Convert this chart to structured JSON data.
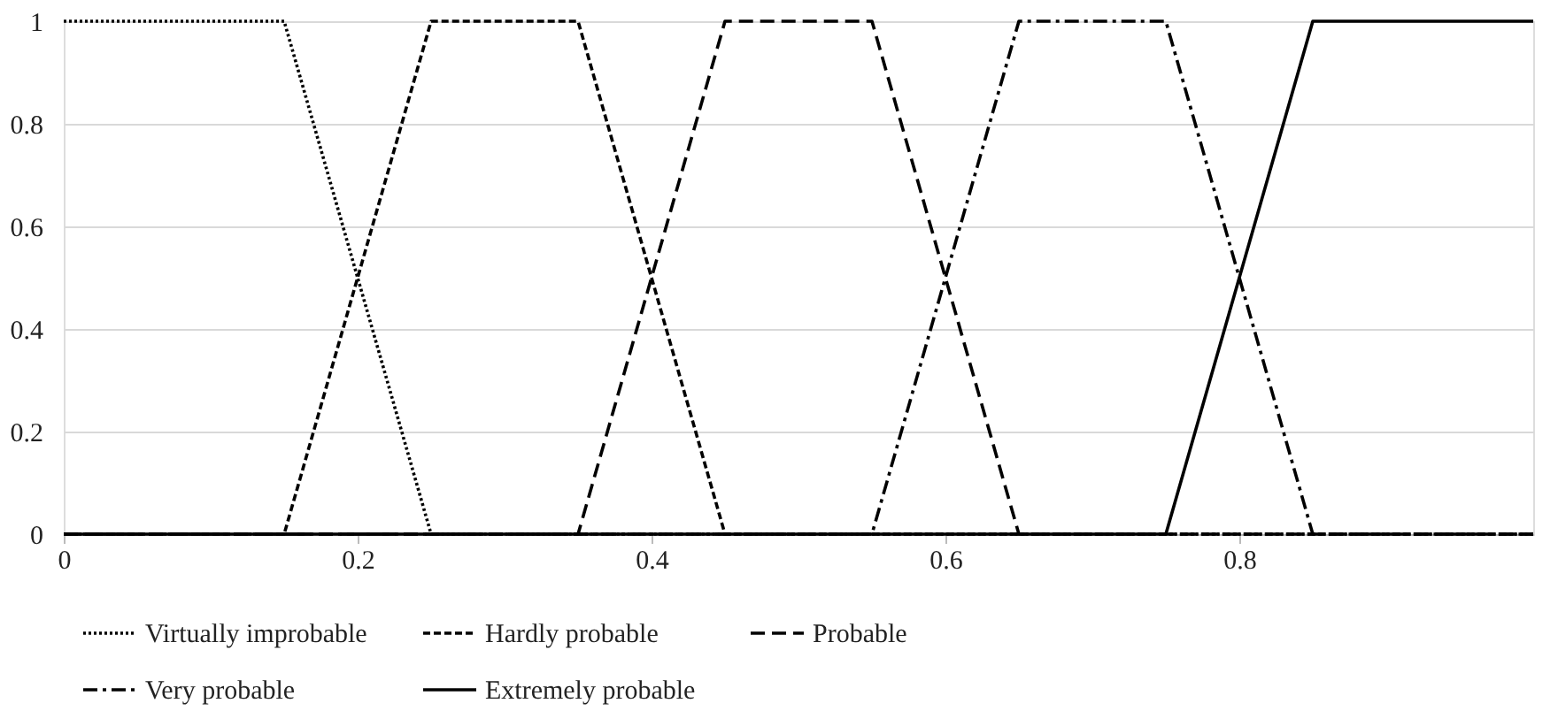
{
  "chart_data": {
    "type": "line",
    "xlim": [
      0,
      1
    ],
    "xticks": [
      0,
      0.2,
      0.4,
      0.6,
      0.8
    ],
    "ylim": [
      0,
      1
    ],
    "yticks": [
      0,
      0.2,
      0.4,
      0.6,
      0.8,
      1
    ],
    "grid": "y",
    "legend": "bottom",
    "marker": "none",
    "series": [
      {
        "name": "Virtually improbable",
        "color": "#000000",
        "line_style": "dotted",
        "x": [
          0,
          0.15,
          0.25,
          1
        ],
        "values": [
          1,
          1,
          0,
          0
        ]
      },
      {
        "name": "Hardly probable",
        "color": "#000000",
        "line_style": "dashed",
        "x": [
          0,
          0.15,
          0.25,
          0.35,
          0.45,
          1
        ],
        "values": [
          0,
          0,
          1,
          1,
          0,
          0
        ]
      },
      {
        "name": "Probable",
        "color": "#000000",
        "line_style": "longdashed",
        "x": [
          0,
          0.35,
          0.45,
          0.55,
          0.65,
          1
        ],
        "values": [
          0,
          0,
          1,
          1,
          0,
          0
        ]
      },
      {
        "name": "Very probable",
        "color": "#000000",
        "line_style": "dashdot",
        "x": [
          0,
          0.55,
          0.65,
          0.75,
          0.85,
          1
        ],
        "values": [
          0,
          0,
          1,
          1,
          0,
          0
        ]
      },
      {
        "name": "Extremely probable",
        "color": "#000000",
        "line_style": "solid",
        "x": [
          0,
          0.75,
          0.85,
          1
        ],
        "values": [
          0,
          0,
          1,
          1
        ]
      }
    ]
  }
}
